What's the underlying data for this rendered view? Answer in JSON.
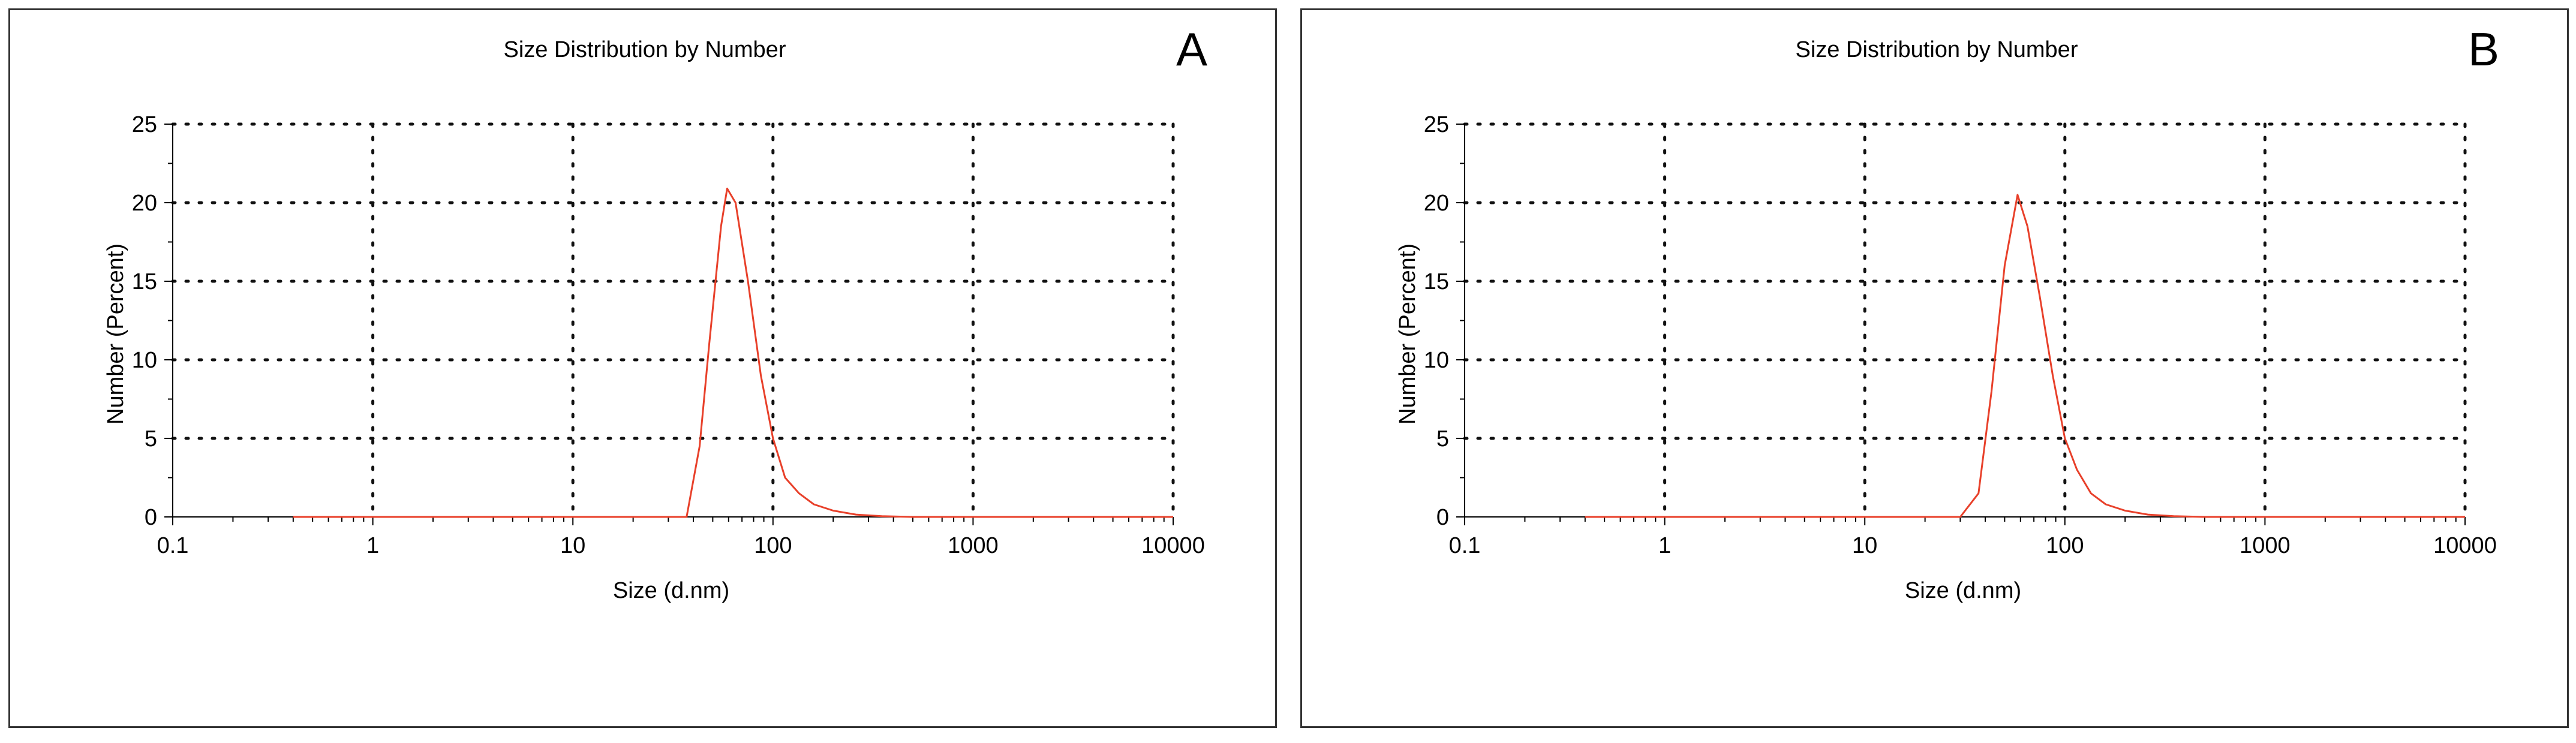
{
  "chart_data": [
    {
      "type": "line",
      "panel_label": "A",
      "title": "Size Distribution by Number",
      "xlabel": "Size (d.nm)",
      "ylabel": "Number (Percent)",
      "xscale": "log",
      "xlim": [
        0.1,
        10000
      ],
      "ylim": [
        0,
        25
      ],
      "xticks": [
        "0.1",
        "1",
        "10",
        "100",
        "1000",
        "10000"
      ],
      "yticks": [
        "0",
        "5",
        "10",
        "15",
        "20",
        "25"
      ],
      "grid": true,
      "line_color": "#e8402a",
      "series": [
        {
          "x": [
            0.4,
            37,
            43,
            48,
            55,
            59,
            65,
            75,
            87,
            100,
            115,
            135,
            160,
            200,
            260,
            350,
            500,
            10000
          ],
          "y": [
            0,
            0,
            4.5,
            11,
            18.5,
            20.9,
            20,
            15,
            9,
            5,
            2.5,
            1.5,
            0.8,
            0.4,
            0.15,
            0.05,
            0,
            0
          ]
        }
      ]
    },
    {
      "type": "line",
      "panel_label": "B",
      "title": "Size Distribution by Number",
      "xlabel": "Size (d.nm)",
      "ylabel": "Number (Percent)",
      "xscale": "log",
      "xlim": [
        0.1,
        10000
      ],
      "ylim": [
        0,
        25
      ],
      "xticks": [
        "0.1",
        "1",
        "10",
        "100",
        "1000",
        "10000"
      ],
      "yticks": [
        "0",
        "5",
        "10",
        "15",
        "20",
        "25"
      ],
      "grid": true,
      "line_color": "#e8402a",
      "series": [
        {
          "x": [
            0.4,
            30,
            37,
            43,
            50,
            58,
            65,
            75,
            87,
            100,
            115,
            135,
            160,
            200,
            260,
            350,
            500,
            10000
          ],
          "y": [
            0,
            0,
            1.5,
            8,
            16,
            20.5,
            18.5,
            14,
            9,
            5,
            3,
            1.5,
            0.8,
            0.4,
            0.15,
            0.05,
            0,
            0
          ]
        }
      ]
    }
  ]
}
